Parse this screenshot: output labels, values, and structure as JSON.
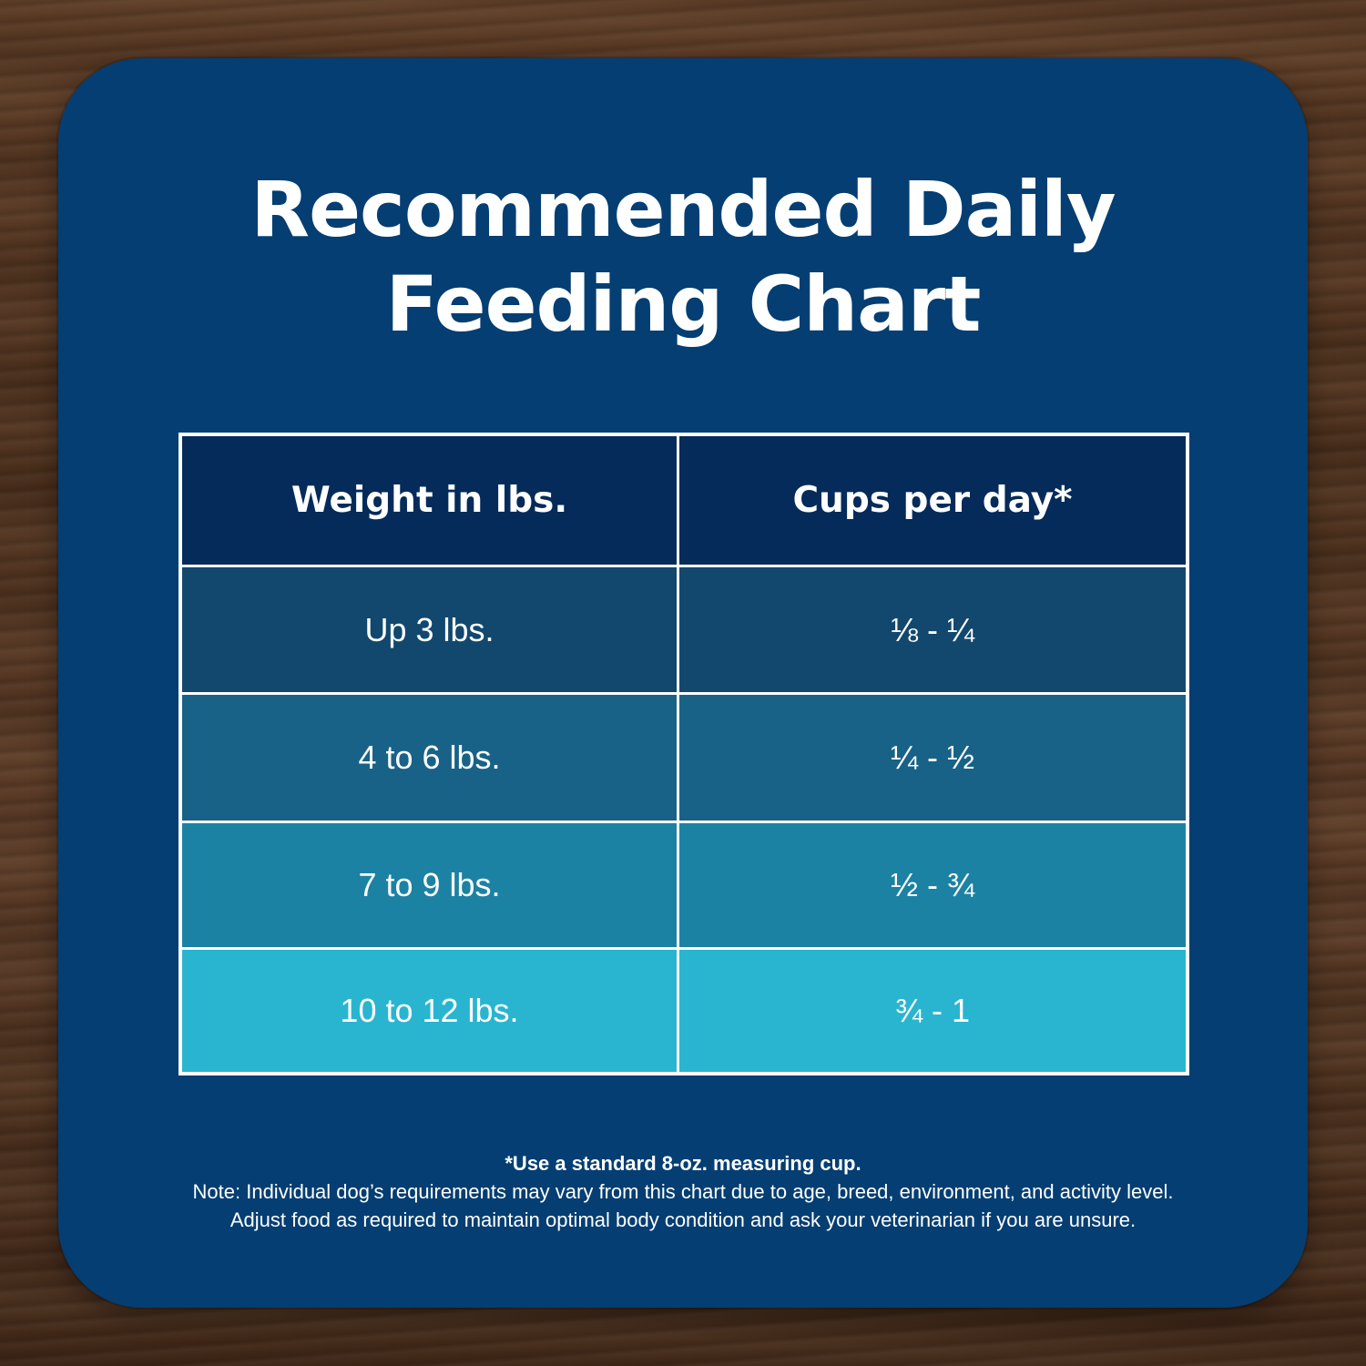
{
  "title": {
    "line1": "Recommended Daily",
    "line2": "Feeding Chart"
  },
  "colors": {
    "card": "#043e72",
    "header_row": "#042b5a",
    "row1": "#12486e",
    "row2": "#196287",
    "row3": "#1c82a4",
    "row4": "#29b5d0",
    "text": "#ffffff"
  },
  "table": {
    "headers": [
      "Weight in lbs.",
      "Cups per day*"
    ],
    "rows": [
      [
        "Up 3 lbs.",
        "⅛ - ¼"
      ],
      [
        "4 to 6 lbs.",
        "¼ - ½"
      ],
      [
        "7 to 9 lbs.",
        "½ - ¾"
      ],
      [
        "10 to 12 lbs.",
        "¾ - 1"
      ]
    ]
  },
  "notes": {
    "footnote": "*Use a standard 8-oz. measuring cup.",
    "line1": "Note: Individual dog’s requirements may vary from this chart due to age, breed, environment, and activity level.",
    "line2": "Adjust food as required to maintain optimal body condition and ask your veterinarian if you are unsure."
  }
}
